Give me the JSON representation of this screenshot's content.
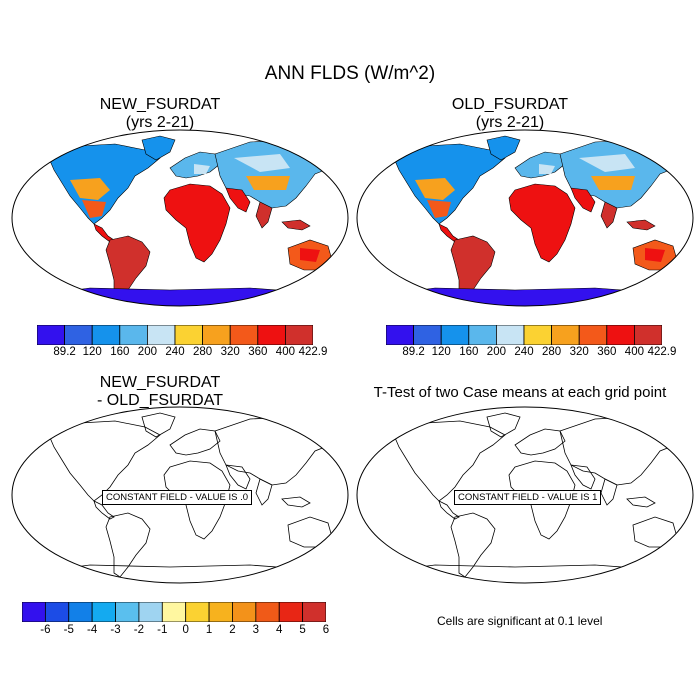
{
  "main_title": "ANN FLDS (W/m^2)",
  "panels": {
    "new": {
      "title_line1": "NEW_FSURDAT",
      "title_line2": "(yrs 2-21)"
    },
    "old": {
      "title_line1": "OLD_FSURDAT",
      "title_line2": "(yrs 2-21)"
    },
    "diff": {
      "title_line1": "NEW_FSURDAT",
      "title_line2": "- OLD_FSURDAT",
      "constant_label": "CONSTANT FIELD - VALUE IS .0"
    },
    "ttest": {
      "title": "T-Test of two Case means at each grid point",
      "constant_label": "CONSTANT FIELD - VALUE IS 1",
      "note": "Cells are significant at 0.1 level"
    }
  },
  "colorbar_main": {
    "labels": [
      "89.2",
      "120",
      "160",
      "200",
      "240",
      "280",
      "320",
      "360",
      "400",
      "422.9"
    ],
    "colors": [
      "#3311ee",
      "#2f62e3",
      "#1592ec",
      "#5ab7ec",
      "#c8e4f4",
      "#fbd232",
      "#f7a11e",
      "#f3591a",
      "#ee1111",
      "#d0302c"
    ]
  },
  "colorbar_diff": {
    "labels": [
      "-6",
      "-5",
      "-4",
      "-3",
      "-2",
      "-1",
      "0",
      "1",
      "2",
      "3",
      "4",
      "5",
      "6"
    ],
    "colors": [
      "#3311ee",
      "#1c4ce6",
      "#1280e8",
      "#14aaf0",
      "#5abfee",
      "#9fd4f1",
      "#fff7a0",
      "#fbd232",
      "#f7b21e",
      "#f3921a",
      "#f05a18",
      "#e82615",
      "#d0302c"
    ]
  }
}
